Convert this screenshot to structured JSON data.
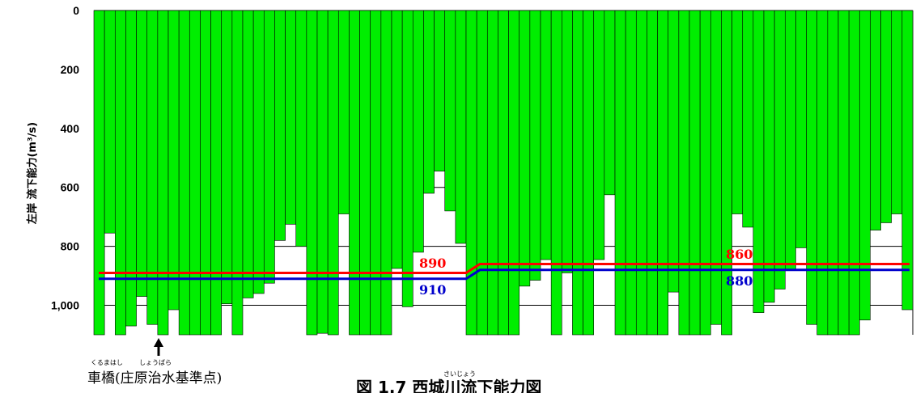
{
  "chart_data": {
    "type": "bar",
    "ylabel": "左岸 流下能力(m³/s)",
    "y_ticks": [
      "0",
      "200",
      "400",
      "600",
      "800",
      "1,000"
    ],
    "y_range": [
      0,
      1100
    ],
    "y_inverted": true,
    "bar_color": "#00ee00",
    "values": [
      1100,
      755,
      1100,
      1070,
      970,
      1065,
      1100,
      1015,
      1100,
      1100,
      1100,
      1100,
      995,
      1100,
      975,
      960,
      925,
      780,
      725,
      800,
      1100,
      1095,
      1100,
      690,
      1100,
      1100,
      1100,
      1100,
      875,
      1005,
      820,
      620,
      545,
      680,
      790,
      1100,
      1100,
      1100,
      1100,
      1100,
      935,
      915,
      845,
      1100,
      890,
      1100,
      1100,
      845,
      625,
      1100,
      1100,
      1100,
      1100,
      1100,
      955,
      1100,
      1100,
      1100,
      1065,
      1100,
      690,
      735,
      1025,
      990,
      945,
      880,
      805,
      1065,
      1100,
      1100,
      1100,
      1100,
      1050,
      745,
      720,
      690,
      1015
    ],
    "reference_lines": [
      {
        "label": "890",
        "color": "#ff0000",
        "segments": [
          {
            "from_bar": 0,
            "to_bar": 34,
            "value": 890
          },
          {
            "from_bar": 36,
            "to_bar": 76,
            "value": 860
          }
        ]
      },
      {
        "label": "910",
        "color": "#0000cc",
        "segments": [
          {
            "from_bar": 0,
            "to_bar": 34,
            "value": 910
          },
          {
            "from_bar": 36,
            "to_bar": 76,
            "value": 880
          }
        ]
      }
    ],
    "line_labels": [
      {
        "text": "890",
        "color": "#ff0000"
      },
      {
        "text": "910",
        "color": "#0000cc"
      },
      {
        "text": "860",
        "color": "#ff0000"
      },
      {
        "text": "880",
        "color": "#0000cc"
      }
    ]
  },
  "location_label": {
    "text": "車橋(庄原治水基準点)",
    "ruby_1": "くるまはし",
    "ruby_2": "しょうばら"
  },
  "caption": {
    "text": "図 1.7 西城川流下能力図",
    "ruby": "さいじょう"
  }
}
